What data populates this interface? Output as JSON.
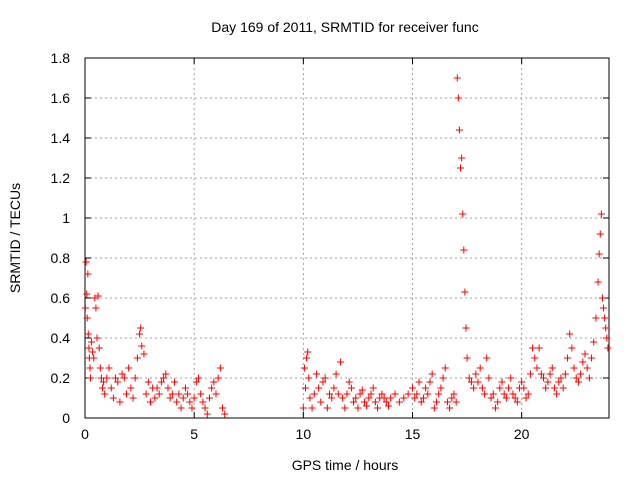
{
  "chart_data": {
    "type": "scatter",
    "title": "Day 169 of 2011, SRMTID for receiver func",
    "xlabel": "GPS time / hours",
    "ylabel": "SRMTID / TECUs",
    "xlim": [
      0,
      24
    ],
    "ylim": [
      0,
      1.8
    ],
    "xticks": [
      0,
      5,
      10,
      15,
      20
    ],
    "xtick_labels": [
      "0",
      "5",
      "10",
      "15",
      "20"
    ],
    "yticks": [
      0,
      0.2,
      0.4,
      0.6,
      0.8,
      1.0,
      1.2,
      1.4,
      1.6,
      1.8
    ],
    "ytick_labels": [
      "0",
      "0.2",
      "0.4",
      "0.6",
      "0.8",
      "1",
      "1.2",
      "1.4",
      "1.6",
      "1.8"
    ],
    "grid": true,
    "marker": "+",
    "color": "#ff0000",
    "series": [
      {
        "name": "SRMTID",
        "points": [
          [
            0.02,
            0.55
          ],
          [
            0.05,
            0.78
          ],
          [
            0.08,
            0.62
          ],
          [
            0.1,
            0.5
          ],
          [
            0.13,
            0.72
          ],
          [
            0.15,
            0.42
          ],
          [
            0.18,
            0.35
          ],
          [
            0.2,
            0.3
          ],
          [
            0.23,
            0.25
          ],
          [
            0.25,
            0.2
          ],
          [
            0.3,
            0.38
          ],
          [
            0.35,
            0.33
          ],
          [
            0.4,
            0.3
          ],
          [
            0.45,
            0.6
          ],
          [
            0.5,
            0.55
          ],
          [
            0.55,
            0.4
          ],
          [
            0.6,
            0.61
          ],
          [
            0.65,
            0.35
          ],
          [
            0.7,
            0.25
          ],
          [
            0.75,
            0.2
          ],
          [
            0.8,
            0.15
          ],
          [
            0.85,
            0.18
          ],
          [
            0.9,
            0.12
          ],
          [
            1.0,
            0.2
          ],
          [
            1.1,
            0.25
          ],
          [
            1.2,
            0.15
          ],
          [
            1.3,
            0.1
          ],
          [
            1.4,
            0.2
          ],
          [
            1.5,
            0.18
          ],
          [
            1.6,
            0.08
          ],
          [
            1.7,
            0.22
          ],
          [
            1.8,
            0.2
          ],
          [
            1.9,
            0.12
          ],
          [
            2.0,
            0.25
          ],
          [
            2.1,
            0.15
          ],
          [
            2.2,
            0.1
          ],
          [
            2.3,
            0.2
          ],
          [
            2.4,
            0.3
          ],
          [
            2.5,
            0.42
          ],
          [
            2.55,
            0.45
          ],
          [
            2.6,
            0.36
          ],
          [
            2.7,
            0.32
          ],
          [
            2.8,
            0.12
          ],
          [
            2.9,
            0.18
          ],
          [
            3.0,
            0.08
          ],
          [
            3.1,
            0.15
          ],
          [
            3.2,
            0.1
          ],
          [
            3.3,
            0.15
          ],
          [
            3.4,
            0.12
          ],
          [
            3.5,
            0.18
          ],
          [
            3.6,
            0.2
          ],
          [
            3.7,
            0.22
          ],
          [
            3.8,
            0.15
          ],
          [
            3.9,
            0.1
          ],
          [
            4.0,
            0.12
          ],
          [
            4.1,
            0.18
          ],
          [
            4.2,
            0.08
          ],
          [
            4.3,
            0.12
          ],
          [
            4.4,
            0.05
          ],
          [
            4.5,
            0.1
          ],
          [
            4.6,
            0.15
          ],
          [
            4.7,
            0.12
          ],
          [
            4.8,
            0.08
          ],
          [
            4.9,
            0.05
          ],
          [
            5.0,
            0.1
          ],
          [
            5.1,
            0.18
          ],
          [
            5.2,
            0.2
          ],
          [
            5.3,
            0.12
          ],
          [
            5.4,
            0.08
          ],
          [
            5.5,
            0.05
          ],
          [
            5.6,
            0.02
          ],
          [
            5.7,
            0.1
          ],
          [
            5.8,
            0.15
          ],
          [
            5.9,
            0.18
          ],
          [
            6.0,
            0.12
          ],
          [
            6.1,
            0.2
          ],
          [
            6.2,
            0.25
          ],
          [
            6.3,
            0.05
          ],
          [
            6.4,
            0.02
          ],
          [
            10.0,
            0.05
          ],
          [
            10.05,
            0.25
          ],
          [
            10.1,
            0.15
          ],
          [
            10.15,
            0.3
          ],
          [
            10.2,
            0.33
          ],
          [
            10.25,
            0.2
          ],
          [
            10.3,
            0.1
          ],
          [
            10.4,
            0.05
          ],
          [
            10.5,
            0.12
          ],
          [
            10.6,
            0.22
          ],
          [
            10.7,
            0.15
          ],
          [
            10.8,
            0.08
          ],
          [
            10.9,
            0.18
          ],
          [
            11.0,
            0.2
          ],
          [
            11.1,
            0.05
          ],
          [
            11.2,
            0.12
          ],
          [
            11.3,
            0.1
          ],
          [
            11.4,
            0.15
          ],
          [
            11.5,
            0.22
          ],
          [
            11.6,
            0.12
          ],
          [
            11.7,
            0.28
          ],
          [
            11.8,
            0.1
          ],
          [
            11.9,
            0.05
          ],
          [
            12.0,
            0.12
          ],
          [
            12.1,
            0.18
          ],
          [
            12.2,
            0.15
          ],
          [
            12.3,
            0.08
          ],
          [
            12.4,
            0.1
          ],
          [
            12.5,
            0.05
          ],
          [
            12.6,
            0.12
          ],
          [
            12.7,
            0.14
          ],
          [
            12.8,
            0.08
          ],
          [
            12.9,
            0.06
          ],
          [
            13.0,
            0.1
          ],
          [
            13.1,
            0.12
          ],
          [
            13.2,
            0.15
          ],
          [
            13.3,
            0.08
          ],
          [
            13.4,
            0.05
          ],
          [
            13.5,
            0.1
          ],
          [
            13.6,
            0.12
          ],
          [
            13.7,
            0.1
          ],
          [
            13.8,
            0.08
          ],
          [
            13.9,
            0.06
          ],
          [
            14.0,
            0.1
          ],
          [
            14.2,
            0.12
          ],
          [
            14.4,
            0.08
          ],
          [
            14.6,
            0.1
          ],
          [
            14.8,
            0.12
          ],
          [
            15.0,
            0.15
          ],
          [
            15.1,
            0.1
          ],
          [
            15.2,
            0.12
          ],
          [
            15.3,
            0.18
          ],
          [
            15.4,
            0.08
          ],
          [
            15.5,
            0.1
          ],
          [
            15.6,
            0.15
          ],
          [
            15.7,
            0.12
          ],
          [
            15.8,
            0.18
          ],
          [
            15.9,
            0.22
          ],
          [
            16.0,
            0.05
          ],
          [
            16.1,
            0.08
          ],
          [
            16.2,
            0.12
          ],
          [
            16.3,
            0.15
          ],
          [
            16.4,
            0.2
          ],
          [
            16.5,
            0.25
          ],
          [
            16.6,
            0.08
          ],
          [
            16.7,
            0.05
          ],
          [
            16.8,
            0.1
          ],
          [
            16.9,
            0.12
          ],
          [
            17.0,
            0.08
          ],
          [
            17.05,
            1.7
          ],
          [
            17.1,
            1.6
          ],
          [
            17.15,
            1.44
          ],
          [
            17.2,
            1.25
          ],
          [
            17.25,
            1.3
          ],
          [
            17.3,
            1.02
          ],
          [
            17.35,
            0.84
          ],
          [
            17.4,
            0.63
          ],
          [
            17.45,
            0.45
          ],
          [
            17.5,
            0.3
          ],
          [
            17.6,
            0.2
          ],
          [
            17.7,
            0.18
          ],
          [
            17.8,
            0.15
          ],
          [
            17.9,
            0.22
          ],
          [
            18.0,
            0.18
          ],
          [
            18.1,
            0.25
          ],
          [
            18.2,
            0.15
          ],
          [
            18.3,
            0.12
          ],
          [
            18.4,
            0.3
          ],
          [
            18.5,
            0.2
          ],
          [
            18.6,
            0.1
          ],
          [
            18.7,
            0.12
          ],
          [
            18.8,
            0.05
          ],
          [
            18.9,
            0.08
          ],
          [
            19.0,
            0.15
          ],
          [
            19.1,
            0.18
          ],
          [
            19.2,
            0.12
          ],
          [
            19.3,
            0.1
          ],
          [
            19.4,
            0.15
          ],
          [
            19.5,
            0.2
          ],
          [
            19.6,
            0.12
          ],
          [
            19.7,
            0.1
          ],
          [
            19.8,
            0.08
          ],
          [
            19.9,
            0.15
          ],
          [
            20.0,
            0.18
          ],
          [
            20.1,
            0.15
          ],
          [
            20.2,
            0.1
          ],
          [
            20.3,
            0.12
          ],
          [
            20.4,
            0.22
          ],
          [
            20.5,
            0.35
          ],
          [
            20.6,
            0.3
          ],
          [
            20.7,
            0.25
          ],
          [
            20.8,
            0.35
          ],
          [
            20.9,
            0.22
          ],
          [
            21.0,
            0.2
          ],
          [
            21.1,
            0.15
          ],
          [
            21.2,
            0.18
          ],
          [
            21.3,
            0.22
          ],
          [
            21.4,
            0.25
          ],
          [
            21.5,
            0.15
          ],
          [
            21.6,
            0.12
          ],
          [
            21.7,
            0.18
          ],
          [
            21.8,
            0.2
          ],
          [
            21.9,
            0.15
          ],
          [
            22.0,
            0.22
          ],
          [
            22.1,
            0.3
          ],
          [
            22.2,
            0.42
          ],
          [
            22.3,
            0.35
          ],
          [
            22.4,
            0.25
          ],
          [
            22.5,
            0.2
          ],
          [
            22.6,
            0.18
          ],
          [
            22.7,
            0.22
          ],
          [
            22.8,
            0.28
          ],
          [
            22.9,
            0.32
          ],
          [
            23.0,
            0.25
          ],
          [
            23.1,
            0.2
          ],
          [
            23.2,
            0.3
          ],
          [
            23.3,
            0.38
          ],
          [
            23.4,
            0.5
          ],
          [
            23.5,
            0.68
          ],
          [
            23.55,
            0.82
          ],
          [
            23.6,
            0.92
          ],
          [
            23.65,
            1.02
          ],
          [
            23.7,
            0.6
          ],
          [
            23.75,
            0.55
          ],
          [
            23.8,
            0.5
          ],
          [
            23.85,
            0.45
          ],
          [
            23.9,
            0.4
          ],
          [
            23.95,
            0.35
          ]
        ]
      }
    ]
  }
}
